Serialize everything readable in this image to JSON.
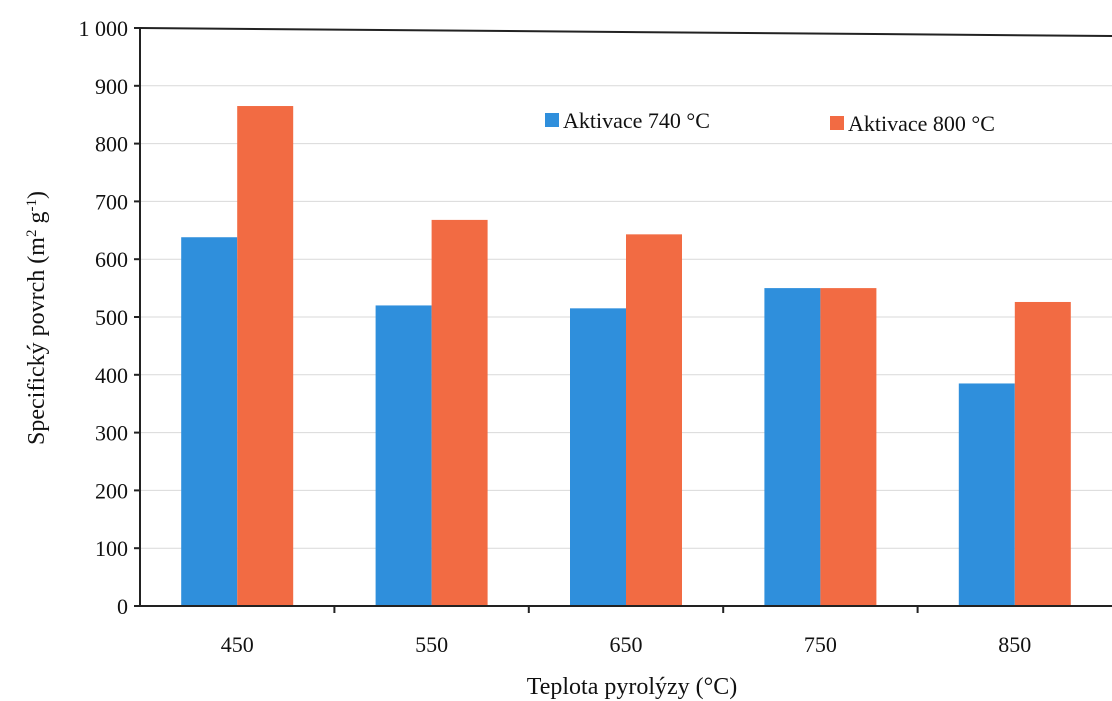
{
  "chart_data": {
    "type": "bar",
    "categories": [
      "450",
      "550",
      "650",
      "750",
      "850"
    ],
    "series": [
      {
        "name": "Aktivace 740 °C",
        "color": "#2f8fdc",
        "values": [
          638,
          520,
          515,
          550,
          385
        ]
      },
      {
        "name": "Aktivace 800 °C",
        "color": "#f26b43",
        "values": [
          865,
          668,
          643,
          550,
          526
        ]
      }
    ],
    "xlabel": "Teplota pyrolýzy  (°C)",
    "ylabel_main": "Specifický  povrch  (m",
    "ylabel_sup1": "2",
    "ylabel_mid": " g",
    "ylabel_sup2": "-1",
    "ylabel_end": ")",
    "ylim": [
      0,
      1000
    ],
    "yticks": [
      "0",
      "100",
      "200",
      "300",
      "400",
      "500",
      "600",
      "700",
      "800",
      "900",
      "1 000"
    ],
    "grid": true,
    "legend_position": "top-right"
  }
}
